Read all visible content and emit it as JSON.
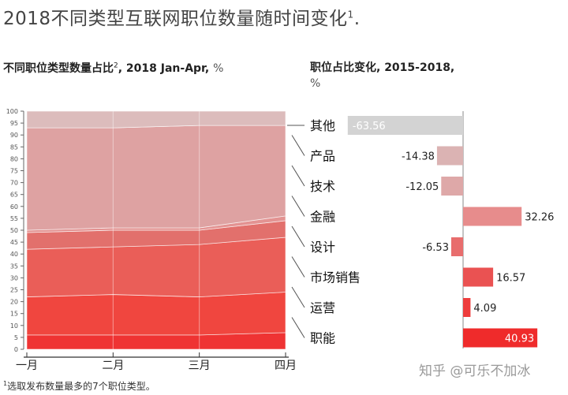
{
  "title": "2018不同类型互联网职位数量随时间变化",
  "title_sup": "1",
  "left_subtitle": "不同职位类型数量占比",
  "left_subtitle_sup": "2",
  "left_subtitle_rest": ", 2018 Jan-Apr,",
  "left_subtitle_unit": "%",
  "right_subtitle": "职位占比变化, 2015-2018,",
  "right_subtitle_unit": "%",
  "footnote_sup": "1",
  "footnote": "选取发布数量最多的7个职位类型。",
  "watermark": "知乎 @可乐不加冰",
  "chart_data": [
    {
      "type": "area",
      "stacked": true,
      "title": "不同职位类型数量占比, 2018 Jan-Apr",
      "categories": [
        "一月",
        "二月",
        "三月",
        "四月"
      ],
      "ylim": [
        0,
        100
      ],
      "yticks": [
        0,
        5,
        10,
        15,
        20,
        25,
        30,
        35,
        40,
        45,
        50,
        55,
        60,
        65,
        70,
        75,
        80,
        85,
        90,
        95,
        100
      ],
      "series": [
        {
          "name": "职能",
          "values": [
            6,
            6,
            6,
            7
          ],
          "color": "#ef3333"
        },
        {
          "name": "运营",
          "values": [
            16,
            17,
            16,
            17
          ],
          "color": "#f0463f"
        },
        {
          "name": "市场销售",
          "values": [
            20,
            20,
            22,
            23
          ],
          "color": "#ea5e58"
        },
        {
          "name": "设计",
          "values": [
            7,
            7,
            6,
            7
          ],
          "color": "#e2706c"
        },
        {
          "name": "金融",
          "values": [
            1,
            1,
            1,
            2
          ],
          "color": "#e39392"
        },
        {
          "name": "技术",
          "values": [
            43,
            42,
            43,
            38
          ],
          "color": "#dea2a2"
        },
        {
          "name": "产品",
          "values": [
            0,
            0,
            0,
            0
          ],
          "color": "#d9b2b2"
        },
        {
          "name": "其他",
          "values": [
            7,
            7,
            6,
            6
          ],
          "color": "#dcbcbc"
        }
      ]
    },
    {
      "type": "bar",
      "orientation": "horizontal",
      "title": "职位占比变化, 2015-2018",
      "categories": [
        "其他",
        "产品",
        "技术",
        "金融",
        "设计",
        "市场销售",
        "运营",
        "职能"
      ],
      "values": [
        -63.56,
        -14.38,
        -12.05,
        32.26,
        -6.53,
        16.57,
        4.09,
        40.93
      ],
      "labels": [
        "-63.56",
        "-14.38",
        "-12.05",
        "32.26",
        "-6.53",
        "16.57",
        "4.09",
        "40.93"
      ],
      "colors": [
        "#d3d3d3",
        "#dbb3b3",
        "#dea8a8",
        "#e78c8c",
        "#e86d6d",
        "#ea5252",
        "#ee3c3c",
        "#ef2b2b"
      ]
    }
  ]
}
